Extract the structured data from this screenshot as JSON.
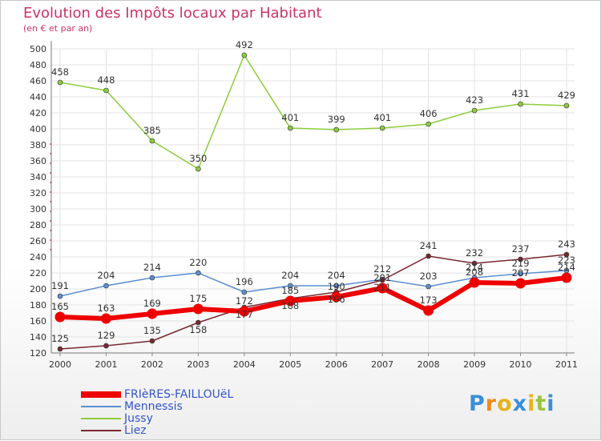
{
  "chart_data": {
    "type": "line",
    "title": "Evolution des Impôts locaux par Habitant",
    "subtitle": "(en € et par an)",
    "xlabel": "",
    "ylabel": "",
    "ylim": [
      120,
      500
    ],
    "ytick_step": 20,
    "grid": true,
    "legend_position": "bottom-left",
    "categories": [
      "2000",
      "2001",
      "2002",
      "2003",
      "2004",
      "2005",
      "2006",
      "2007",
      "2008",
      "2009",
      "2010",
      "2011"
    ],
    "yticks": [
      "120",
      "140",
      "160",
      "180",
      "200",
      "220",
      "240",
      "260",
      "280",
      "300",
      "320",
      "340",
      "360",
      "380",
      "400",
      "420",
      "440",
      "460",
      "480",
      "500"
    ],
    "series": [
      {
        "name": "Jussy",
        "color": "#8ccc3c",
        "values": [
          458,
          448,
          385,
          350,
          492,
          401,
          399,
          401,
          406,
          423,
          431,
          429
        ],
        "labels": [
          "458",
          "448",
          "385",
          "350",
          "492",
          "401",
          "399",
          "401",
          "406",
          "423",
          "431",
          "429"
        ]
      },
      {
        "name": "Mennessis",
        "color": "#5b8fd0",
        "values": [
          191,
          204,
          214,
          220,
          196,
          204,
          204,
          212,
          203,
          214,
          219,
          223
        ],
        "labels": [
          "191",
          "204",
          "214",
          "220",
          "196",
          "204",
          "204",
          "212",
          "203",
          "214",
          "219",
          "223"
        ]
      },
      {
        "name": "Liez",
        "color": "#7a2830",
        "values": [
          125,
          129,
          135,
          158,
          177,
          188,
          196,
          211,
          241,
          232,
          237,
          243
        ],
        "labels": [
          "125",
          "129",
          "135",
          "158",
          "177",
          "188",
          "196",
          "211",
          "241",
          "232",
          "237",
          "243"
        ]
      },
      {
        "name": "FRIèRES-FAILLOUëL",
        "color": "#ee0000",
        "values": [
          165,
          163,
          169,
          175,
          172,
          185,
          190,
          201,
          173,
          208,
          207,
          214
        ],
        "labels": [
          "165",
          "163",
          "169",
          "175",
          "172",
          "185",
          "190",
          "201",
          "173",
          "208",
          "207",
          "214"
        ]
      }
    ]
  },
  "legend": {
    "items": [
      {
        "label": "FRIèRES-FAILLOUëL",
        "color": "#ee0000"
      },
      {
        "label": "Mennessis",
        "color": "#5b8fd0"
      },
      {
        "label": "Jussy",
        "color": "#8ccc3c"
      },
      {
        "label": "Liez",
        "color": "#7a2830"
      }
    ]
  },
  "logo": {
    "letters": [
      "P",
      "r",
      "o",
      "x",
      "i",
      "t",
      "i"
    ],
    "colors": [
      "#3a8fd6",
      "#f08a1c",
      "#e8b21a",
      "#3a8fd6",
      "#e8b21a",
      "#9ac43c",
      "#3a8fd6"
    ]
  }
}
